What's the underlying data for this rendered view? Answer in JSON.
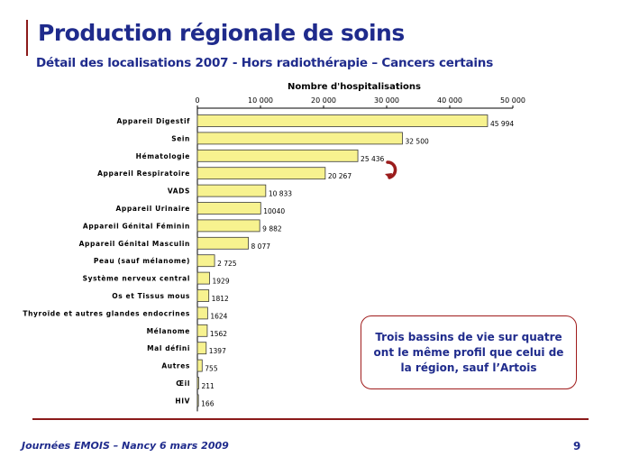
{
  "slide": {
    "title": "Production régionale de soins",
    "subtitle": "Détail des localisations 2007 - Hors radiothérapie – Cancers certains",
    "callout": "Trois bassins de vie sur quatre ont le même profil que celui de la région, sauf l’Artois",
    "footer_left": "Journées EMOIS – Nancy 6 mars 2009",
    "page_number": "9"
  },
  "colors": {
    "bar_fill": "#f7f28f",
    "bar_stroke": "#3a3a3a",
    "title_blue": "#1f2b8c",
    "rule_red": "#8b1a1a",
    "arrow_red": "#9b1c1c"
  },
  "chart_data": {
    "type": "bar",
    "orientation": "horizontal",
    "title": "Nombre d'hospitalisations",
    "xlim": [
      0,
      50000
    ],
    "x_ticks": [
      0,
      10000,
      20000,
      30000,
      40000,
      50000
    ],
    "x_tick_labels": [
      "0",
      "10 000",
      "20 000",
      "30 000",
      "40 000",
      "50 000"
    ],
    "categories": [
      "Appareil Digestif",
      "Sein",
      "Hématologie",
      "Appareil Respiratoire",
      "VADS",
      "Appareil Urinaire",
      "Appareil Génital Féminin",
      "Appareil Génital Masculin",
      "Peau (sauf mélanome)",
      "Système nerveux central",
      "Os et Tissus mous",
      "Thyroïde et autres glandes endocrines",
      "Mélanome",
      "Mal défini",
      "Autres",
      "Œil",
      "HIV"
    ],
    "values": [
      45994,
      32500,
      25436,
      20267,
      10833,
      10040,
      9882,
      8077,
      2725,
      1929,
      1812,
      1624,
      1562,
      1397,
      755,
      211,
      166
    ],
    "value_labels": [
      "45 994",
      "32 500",
      "25 436",
      "20 267",
      "10 833",
      "10040",
      "9 882",
      "8 077",
      "2 725",
      "1929",
      "1812",
      "1624",
      "1562",
      "1397",
      "755",
      "211",
      "166"
    ],
    "grid": false,
    "legend": "none"
  }
}
